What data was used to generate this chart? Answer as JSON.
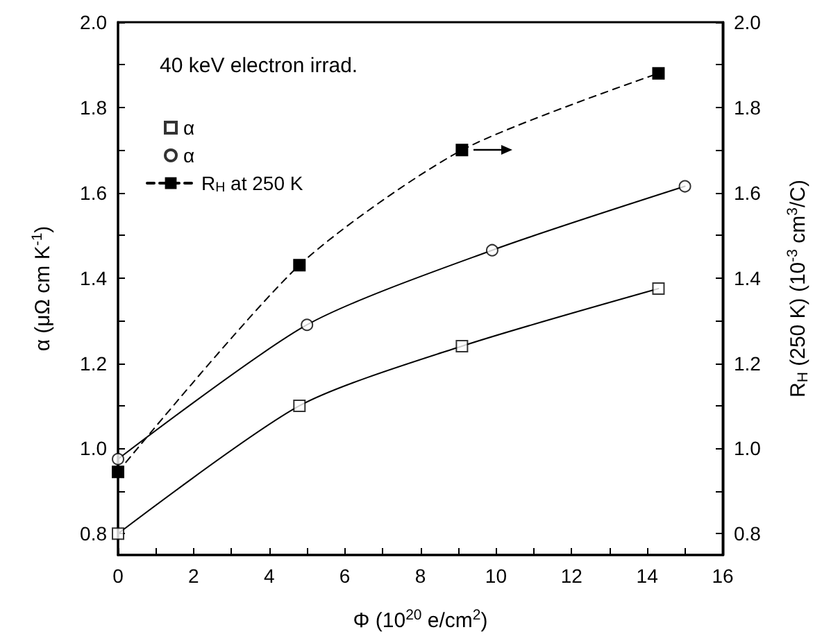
{
  "chart_data": {
    "type": "scatter",
    "xlabel": "Φ (10$^{20}$ e/cm$^{2}$)",
    "ylabel": "α (μΩ cm K$^{-1}$)",
    "y2label": "R$_{H}$ (250 K) (10$^{-3}$ cm$^{3}$/C)",
    "annotations": [
      "40 keV electron irrad."
    ],
    "series": [
      {
        "name": "α",
        "marker": "square",
        "color": "#000000",
        "x": [
          0,
          4.8,
          9.1,
          14.3
        ],
        "values": [
          0.8,
          1.1,
          1.24,
          1.375
        ]
      },
      {
        "name": "α",
        "marker": "circle",
        "color": "#000000",
        "x": [
          0,
          5.0,
          9.9,
          15.0
        ],
        "values": [
          0.975,
          1.29,
          1.465,
          1.615
        ]
      },
      {
        "name": "R$_{H}$ at 250 K",
        "type": "line",
        "marker": "square",
        "line_style": "dashed",
        "axis": "y2",
        "color": "#000000",
        "x": [
          0,
          4.8,
          9.1,
          14.3
        ],
        "values": [
          0.945,
          1.43,
          1.7,
          1.88
        ]
      },
      {
        "type": "line",
        "marker": "none",
        "line_style": "solid",
        "color": "#000000",
        "x": [
          0,
          4.8,
          9.1,
          14.3
        ],
        "values": [
          0.8,
          1.1,
          1.24,
          1.375
        ]
      },
      {
        "type": "line",
        "marker": "none",
        "line_style": "solid",
        "color": "#000000",
        "x": [
          0,
          5.0,
          9.9,
          15.0
        ],
        "values": [
          0.975,
          1.29,
          1.465,
          1.615
        ]
      }
    ],
    "xlim": [
      0,
      16
    ],
    "xticks": [
      0,
      {
        "value": 1,
        "label": null
      },
      2,
      {
        "value": 3,
        "label": null
      },
      4,
      {
        "value": 5,
        "label": null
      },
      6,
      {
        "value": 7,
        "label": null
      },
      8,
      {
        "value": 9,
        "label": null
      },
      10,
      {
        "value": 11,
        "label": null
      },
      12,
      {
        "value": 13,
        "label": null
      },
      14,
      {
        "value": 15,
        "label": null
      },
      16
    ],
    "ylim": [
      0.75,
      2.0
    ],
    "yticks": [
      {
        "value": 0.8,
        "label": "0.8"
      },
      {
        "value": 0.9,
        "label": null
      },
      {
        "value": 1.0,
        "label": "1.0"
      },
      {
        "value": 1.1,
        "label": null
      },
      {
        "value": 1.2,
        "label": "1.2"
      },
      {
        "value": 1.3,
        "label": null
      },
      {
        "value": 1.4,
        "label": "1.4"
      },
      {
        "value": 1.5,
        "label": null
      },
      {
        "value": 1.6,
        "label": "1.6"
      },
      {
        "value": 1.7,
        "label": null
      },
      {
        "value": 1.8,
        "label": "1.8"
      },
      {
        "value": 1.9,
        "label": null
      },
      {
        "value": 2.0,
        "label": "2.0"
      }
    ],
    "y2lim": [
      0.75,
      2.0
    ],
    "y2ticks": [
      {
        "value": 0.8,
        "label": "0.8"
      },
      {
        "value": 0.9,
        "label": null
      },
      {
        "value": 1.0,
        "label": "1.0"
      },
      {
        "value": 1.1,
        "label": null
      },
      {
        "value": 1.2,
        "label": "1.2"
      },
      {
        "value": 1.3,
        "label": null
      },
      {
        "value": 1.4,
        "label": "1.4"
      },
      {
        "value": 1.5,
        "label": null
      },
      {
        "value": 1.6,
        "label": "1.6"
      },
      {
        "value": 1.7,
        "label": null
      },
      {
        "value": 1.8,
        "label": "1.8"
      },
      {
        "value": 1.9,
        "label": null
      },
      {
        "value": 2.0,
        "label": "2.0"
      }
    ],
    "grid": false,
    "legend": "top left"
  }
}
